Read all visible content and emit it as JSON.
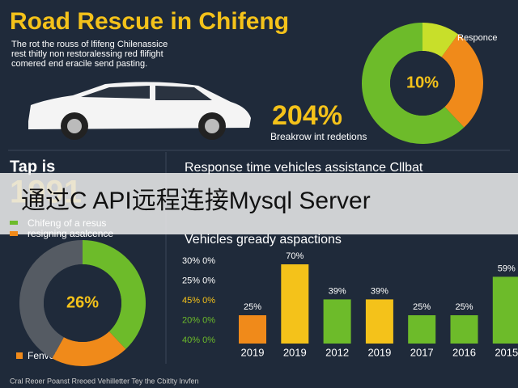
{
  "header": {
    "title": "Road Rescue in Chifeng",
    "subtitle": [
      "The rot the rouss of lfifeng Chilenassice",
      "rest thitly non restoralessing red flifight",
      "comered end eracile send pasting."
    ]
  },
  "stats": {
    "big": "204%",
    "big_caption": "Breakrow int redetions",
    "left_title": "Tap is",
    "left_number": "1991",
    "legend": [
      "Chifeng of a resus",
      "resigning asalcence"
    ],
    "bottom_legend": "Fenveller acfence"
  },
  "section_title": "Response time vehicles assistance Cllbat",
  "banner": "通过C API远程连接Mysql Server",
  "footer": "Cral Reoer Poanst Rreoed Vehilletter Tey the Cbitlty lnvfen",
  "chart_data": [
    {
      "type": "pie",
      "title": "Responce",
      "center_label": "10%",
      "values": [
        10,
        28,
        62
      ],
      "colors": [
        "#c8df2a",
        "#f08a1a",
        "#6dbb2a"
      ]
    },
    {
      "type": "pie",
      "center_label": "26%",
      "values": [
        38,
        20,
        42
      ],
      "colors": [
        "#6dbb2a",
        "#f08a1a",
        "#555b63"
      ]
    },
    {
      "type": "bar",
      "title": "Vehicles gready aspactions",
      "categories": [
        "2019",
        "2019",
        "2012",
        "2019",
        "2017",
        "2016",
        "2015"
      ],
      "values": [
        25,
        70,
        39,
        39,
        25,
        25,
        59
      ],
      "value_labels": [
        "25%",
        "70%",
        "39%",
        "39%",
        "25%",
        "25%",
        "59%"
      ],
      "colors": [
        "#f08a1a",
        "#f4c21a",
        "#6dbb2a",
        "#f4c21a",
        "#6dbb2a",
        "#6dbb2a",
        "#6dbb2a"
      ],
      "axis_texts": [
        "30% 0%",
        "25% 0%",
        "45% 0%",
        "20% 0%",
        "40% 0%"
      ],
      "ylim": [
        0,
        70
      ]
    }
  ]
}
